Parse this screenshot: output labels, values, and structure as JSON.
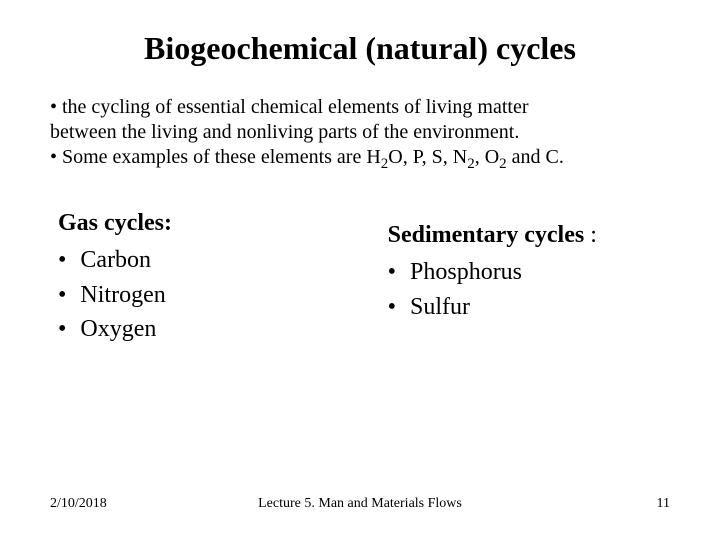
{
  "title": "Biogeochemical (natural) cycles",
  "intro": {
    "line1": "• the cycling of essential chemical elements of living matter",
    "line2": "between the living and nonliving parts of the environment.",
    "line3_prefix": "• Some examples of these elements are H",
    "line3_sub1": "2",
    "line3_mid1": "O, P, S, N",
    "line3_sub2": "2",
    "line3_mid2": ", O",
    "line3_sub3": "2",
    "line3_suffix": " and C."
  },
  "left": {
    "heading": "Gas cycles:",
    "items": [
      "Carbon",
      "Nitrogen",
      "Oxygen"
    ]
  },
  "right": {
    "heading_bold": "Sedimentary cycles",
    "heading_rest": " :",
    "items": [
      "Phosphorus",
      "Sulfur"
    ]
  },
  "footer": {
    "date": "2/10/2018",
    "center": "Lecture 5. Man and Materials Flows",
    "page": "11"
  }
}
